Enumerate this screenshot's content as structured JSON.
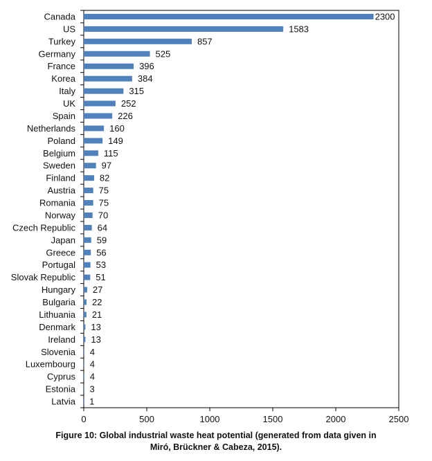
{
  "chart_data": {
    "type": "bar",
    "orientation": "horizontal",
    "categories": [
      "Canada",
      "US",
      "Turkey",
      "Germany",
      "France",
      "Korea",
      "Italy",
      "UK",
      "Spain",
      "Netherlands",
      "Poland",
      "Belgium",
      "Sweden",
      "Finland",
      "Austria",
      "Romania",
      "Norway",
      "Czech Republic",
      "Japan",
      "Greece",
      "Portugal",
      "Slovak Republic",
      "Hungary",
      "Bulgaria",
      "Lithuania",
      "Denmark",
      "Ireland",
      "Slovenia",
      "Luxembourg",
      "Cyprus",
      "Estonia",
      "Latvia"
    ],
    "values": [
      2300,
      1583,
      857,
      525,
      396,
      384,
      315,
      252,
      226,
      160,
      149,
      115,
      97,
      82,
      75,
      75,
      70,
      64,
      59,
      56,
      53,
      51,
      27,
      22,
      21,
      13,
      13,
      4,
      4,
      4,
      3,
      1
    ],
    "xlim": [
      0,
      2500
    ],
    "xticks": [
      "0",
      "500",
      "1000",
      "1500",
      "2000",
      "2500"
    ],
    "grid": false,
    "bar_color": "#4f81bd",
    "data_labels": true
  },
  "caption": {
    "line1": "Figure 10: Global industrial waste heat potential (generated from data given in",
    "line2": "Miró, Brückner & Cabeza, 2015)."
  }
}
